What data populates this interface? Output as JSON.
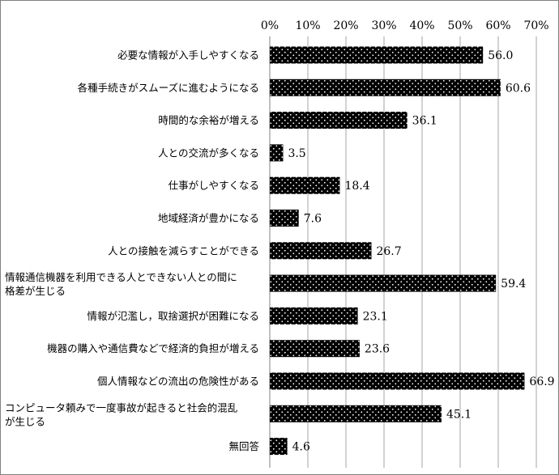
{
  "chart_data": {
    "type": "bar",
    "orientation": "horizontal",
    "categories": [
      [
        "必要な情報が入手しやすくなる"
      ],
      [
        "各種手続きがスムーズに進むようになる"
      ],
      [
        "時間的な余裕が増える"
      ],
      [
        "人との交流が多くなる"
      ],
      [
        "仕事がしやすくなる"
      ],
      [
        "地域経済が豊かになる"
      ],
      [
        "人との接触を減らすことができる"
      ],
      [
        "情報通信機器を利用できる人とできない人との間に",
        "格差が生じる"
      ],
      [
        "情報が氾濫し，取捨選択が困難になる"
      ],
      [
        "機器の購入や通信費などで経済的負担が増える"
      ],
      [
        "個人情報などの流出の危険性がある"
      ],
      [
        "コンピュータ頼みで一度事故が起きると社会的混乱",
        "が生じる"
      ],
      [
        "無回答"
      ]
    ],
    "values": [
      56.0,
      60.6,
      36.1,
      3.5,
      18.4,
      7.6,
      26.7,
      59.4,
      23.1,
      23.6,
      66.9,
      45.1,
      4.6
    ],
    "value_labels": [
      "56.0",
      "60.6",
      "36.1",
      "3.5",
      "18.4",
      "7.6",
      "26.7",
      "59.4",
      "23.1",
      "23.6",
      "66.9",
      "45.1",
      "4.6"
    ],
    "x_ticks": [
      "0%",
      "10%",
      "20%",
      "30%",
      "40%",
      "50%",
      "60%",
      "70%"
    ],
    "xlim": [
      0,
      70
    ],
    "axis_position": "top",
    "grid": true,
    "bar_fill": "black with white dot pattern",
    "colors": {
      "bar": "#000000",
      "dots": "#ffffff",
      "grid": "#a6a6a6",
      "frame": "#808080"
    }
  }
}
